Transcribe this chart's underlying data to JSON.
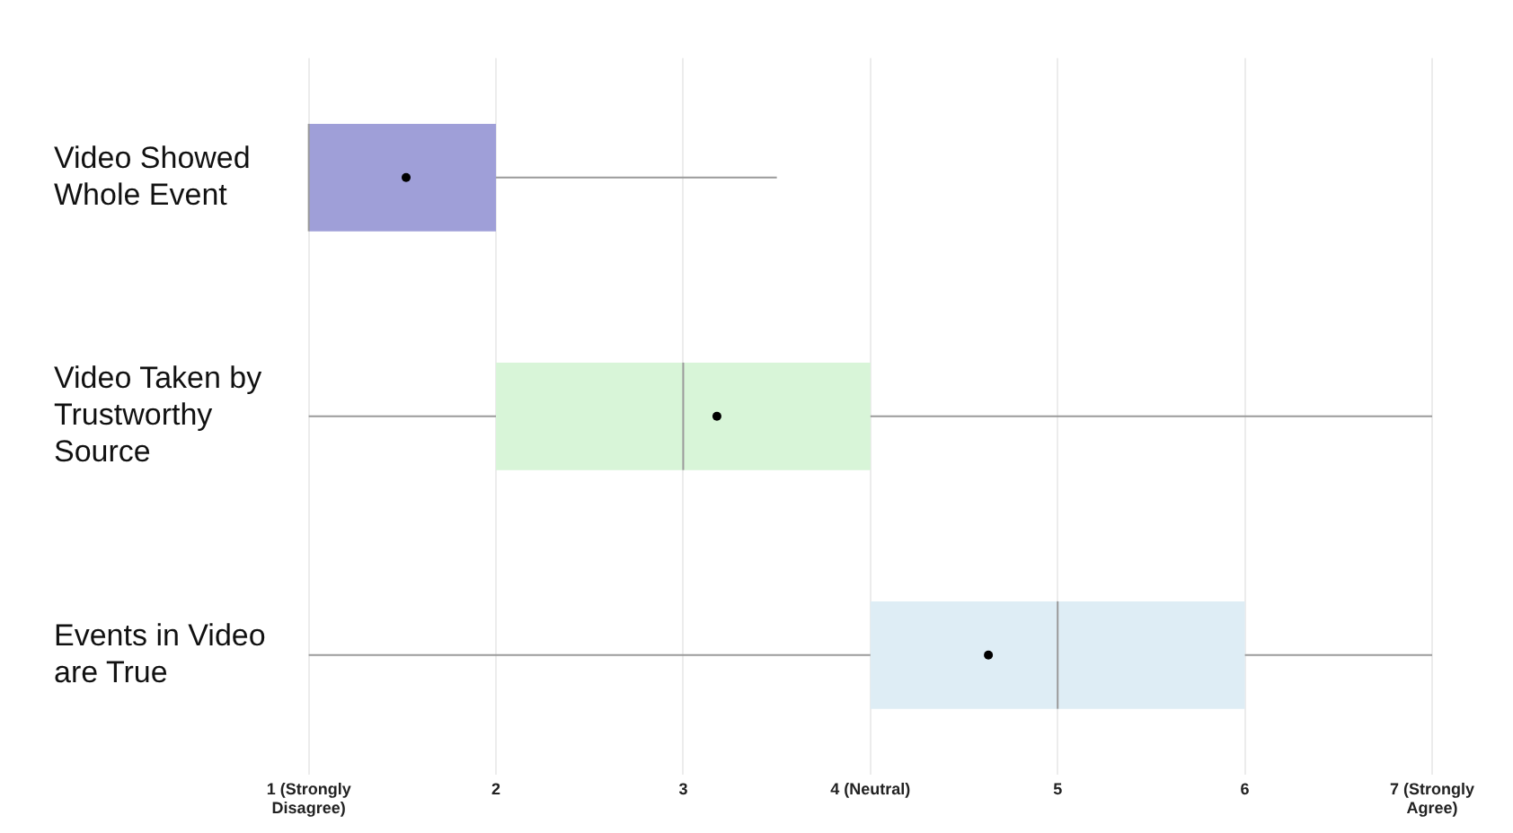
{
  "chart_data": {
    "type": "box",
    "orientation": "horizontal",
    "categories": [
      "Video Showed Whole Event",
      "Video Taken by Trustworthy Source",
      "Events in Video are True"
    ],
    "boxes": [
      {
        "low": 1,
        "q1": 1,
        "median": 1,
        "q3": 2,
        "high": 3.5,
        "mean": 1.52
      },
      {
        "low": 1,
        "q1": 2,
        "median": 3,
        "q3": 4,
        "high": 7,
        "mean": 3.18
      },
      {
        "low": 1,
        "q1": 4,
        "median": 5,
        "q3": 6,
        "high": 7,
        "mean": 4.63
      }
    ],
    "colors": [
      "#9f9fd8",
      "#d8f5d8",
      "#deedf5"
    ],
    "xlim": [
      1,
      7
    ],
    "xticks": [
      {
        "value": 1,
        "label": "1 (Strongly Disagree)"
      },
      2,
      3,
      {
        "value": 4,
        "label": "4 (Neutral)"
      },
      5,
      6,
      {
        "value": 7,
        "label": "7 (Strongly Agree)"
      }
    ],
    "grid": "x"
  }
}
